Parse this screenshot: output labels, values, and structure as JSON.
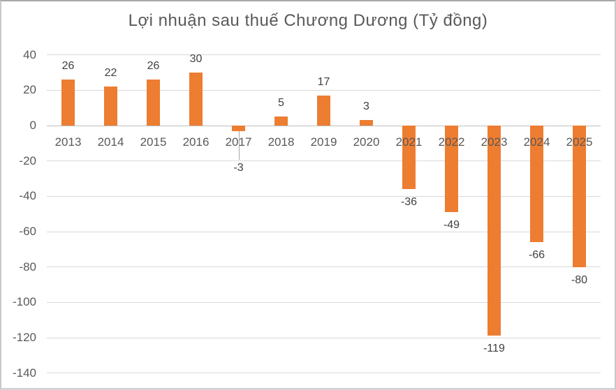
{
  "chart_data": {
    "type": "bar",
    "title": "Lợi nhuận sau thuế Chương Dương (Tỷ đồng)",
    "categories": [
      "2013",
      "2014",
      "2015",
      "2016",
      "2017",
      "2018",
      "2019",
      "2020",
      "2021",
      "2022",
      "2023",
      "2024",
      "2025"
    ],
    "values": [
      26,
      22,
      26,
      30,
      -3,
      5,
      17,
      3,
      -36,
      -49,
      -119,
      -66,
      -80
    ],
    "xlabel": "",
    "ylabel": "",
    "ylim": [
      -140,
      40
    ],
    "yticks": [
      40,
      20,
      0,
      -20,
      -40,
      -60,
      -80,
      -100,
      -120,
      -140
    ],
    "grid": true,
    "legend": false,
    "data_labels": true,
    "moved_label_category": "2017",
    "colors": {
      "bar": "#ED7D31",
      "gridline": "#D9D9D9",
      "zero_line": "#BFBFBF",
      "tick_label": "#595959",
      "data_label": "#404040",
      "title": "#595959",
      "leader_line": "#A6A6A6",
      "background": "#FFFFFF"
    }
  }
}
